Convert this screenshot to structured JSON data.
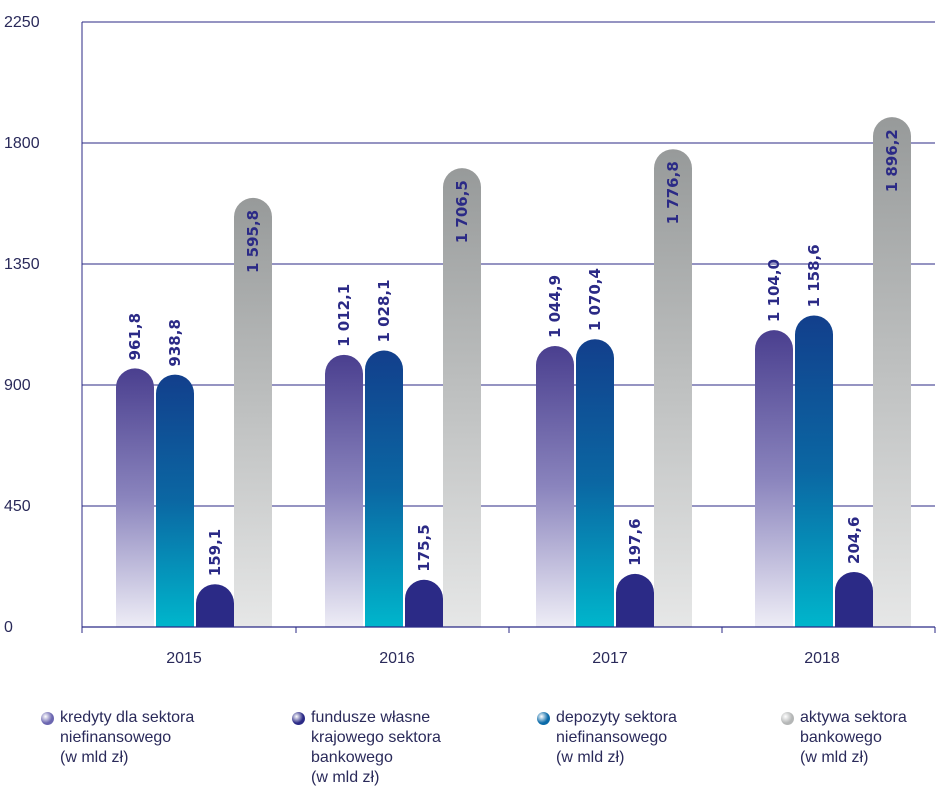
{
  "chart_data": {
    "type": "bar",
    "categories": [
      "2015",
      "2016",
      "2017",
      "2018"
    ],
    "series": [
      {
        "name": "kredyty dla sektora\nniefinansowego\n(w mld zł)",
        "values": [
          961.8,
          1012.1,
          1044.9,
          1104.0
        ],
        "labels": [
          "961,8",
          "1 012,1",
          "1 044,9",
          "1 104,0"
        ],
        "color": "#5a4a9a"
      },
      {
        "name": "depozyty sektora\nniefinansowego\n(w mld zł)",
        "values": [
          938.8,
          1028.1,
          1070.4,
          1158.6
        ],
        "labels": [
          "938,8",
          "1 028,1",
          "1 070,4",
          "1 158,6"
        ],
        "color": "#0a5a9a"
      },
      {
        "name": "fundusze własne\nkrajowego sektora\nbankowego\n(w mld zł)",
        "values": [
          159.1,
          175.5,
          197.6,
          204.6
        ],
        "labels": [
          "159,1",
          "175,5",
          "197,6",
          "204,6"
        ],
        "color": "#2b2a86"
      },
      {
        "name": "aktywa sektora\nbankowego\n(w mld zł)",
        "values": [
          1595.8,
          1706.5,
          1776.8,
          1896.2
        ],
        "labels": [
          "1 595,8",
          "1 706,5",
          "1 776,8",
          "1 896,2"
        ],
        "color": "#a6a8a8"
      }
    ],
    "yticks": [
      "0",
      "450",
      "900",
      "1350",
      "1800",
      "2250"
    ],
    "ylim": [
      0,
      2250
    ],
    "grid": true,
    "legend_position": "bottom"
  },
  "legend": [
    {
      "label": "kredyty dla sektora\nniefinansowego\n(w mld zł)",
      "color": "#6b66b0"
    },
    {
      "label": "fundusze własne\nkrajowego sektora\nbankowego\n(w mld zł)",
      "color": "#2b2a86"
    },
    {
      "label": "depozyty sektora\nniefinansowego\n(w mld zł)",
      "color": "#0a6aa8"
    },
    {
      "label": "aktywa sektora\nbankowego\n(w mld zł)",
      "color": "#b4b6b6"
    }
  ]
}
